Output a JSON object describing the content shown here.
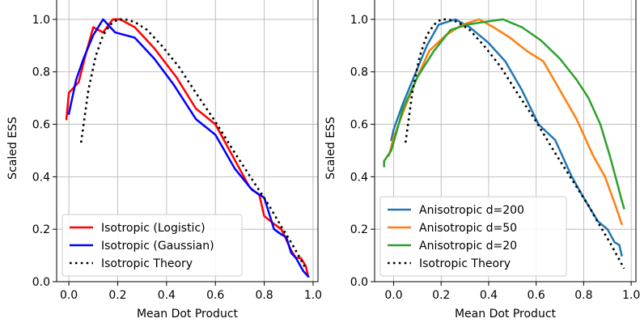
{
  "chart_data": [
    {
      "type": "line",
      "xlabel": "Mean Dot Product",
      "ylabel": "Scaled ESS",
      "xlim": [
        -0.05,
        1.02
      ],
      "ylim": [
        0.0,
        1.08
      ],
      "xticks": [
        "0.0",
        "0.2",
        "0.4",
        "0.6",
        "0.8",
        "1.0"
      ],
      "yticks": [
        "0.0",
        "0.2",
        "0.4",
        "0.6",
        "0.8",
        "1.0"
      ],
      "grid": true,
      "legend_position": "lower-left",
      "series": [
        {
          "name": "Isotropic (Logistic)",
          "color": "#ff0000",
          "style": "solid",
          "x": [
            -0.01,
            0.0,
            0.02,
            0.04,
            0.07,
            0.1,
            0.14,
            0.18,
            0.21,
            0.27,
            0.35,
            0.44,
            0.52,
            0.6,
            0.67,
            0.74,
            0.78,
            0.8,
            0.84,
            0.87,
            0.89,
            0.91,
            0.93,
            0.95,
            0.97,
            0.98
          ],
          "y": [
            0.62,
            0.72,
            0.74,
            0.76,
            0.87,
            0.97,
            0.95,
            1.0,
            1.0,
            0.97,
            0.89,
            0.78,
            0.66,
            0.6,
            0.48,
            0.36,
            0.33,
            0.25,
            0.22,
            0.2,
            0.16,
            0.12,
            0.09,
            0.09,
            0.06,
            0.02
          ]
        },
        {
          "name": "Isotropic (Gaussian)",
          "color": "#0000ff",
          "style": "solid",
          "x": [
            0.0,
            0.03,
            0.06,
            0.1,
            0.14,
            0.19,
            0.27,
            0.35,
            0.43,
            0.52,
            0.6,
            0.68,
            0.75,
            0.8,
            0.84,
            0.87,
            0.89,
            0.91,
            0.93,
            0.96,
            0.98
          ],
          "y": [
            0.64,
            0.77,
            0.85,
            0.94,
            1.0,
            0.95,
            0.93,
            0.85,
            0.75,
            0.62,
            0.56,
            0.43,
            0.35,
            0.32,
            0.2,
            0.18,
            0.17,
            0.11,
            0.09,
            0.04,
            0.02
          ]
        },
        {
          "name": "Isotropic Theory",
          "color": "#000000",
          "style": "dotted",
          "x": [
            0.05,
            0.08,
            0.11,
            0.14,
            0.17,
            0.2,
            0.23,
            0.27,
            0.32,
            0.38,
            0.45,
            0.52,
            0.6,
            0.68,
            0.75,
            0.82,
            0.87,
            0.91,
            0.94,
            0.97
          ],
          "y": [
            0.53,
            0.73,
            0.86,
            0.94,
            0.98,
            1.0,
            1.0,
            0.99,
            0.96,
            0.9,
            0.82,
            0.72,
            0.61,
            0.49,
            0.39,
            0.29,
            0.21,
            0.15,
            0.1,
            0.05
          ]
        }
      ]
    },
    {
      "type": "line",
      "xlabel": "Mean Dot Product",
      "ylabel": "Scaled ESS",
      "xlim": [
        -0.08,
        1.02
      ],
      "ylim": [
        0.0,
        1.08
      ],
      "xticks": [
        "0.0",
        "0.2",
        "0.4",
        "0.6",
        "0.8",
        "1.0"
      ],
      "yticks": [
        "0.0",
        "0.2",
        "0.4",
        "0.6",
        "0.8",
        "1.0"
      ],
      "grid": true,
      "legend_position": "lower-left",
      "series": [
        {
          "name": "Anisotropic d=200",
          "color": "#1f77b4",
          "style": "solid",
          "x": [
            -0.01,
            0.0,
            0.04,
            0.09,
            0.14,
            0.19,
            0.26,
            0.32,
            0.4,
            0.47,
            0.54,
            0.61,
            0.68,
            0.75,
            0.8,
            0.86,
            0.9,
            0.93,
            0.95,
            0.96
          ],
          "y": [
            0.54,
            0.58,
            0.68,
            0.79,
            0.9,
            0.98,
            1.0,
            0.97,
            0.91,
            0.84,
            0.73,
            0.6,
            0.54,
            0.4,
            0.32,
            0.23,
            0.2,
            0.15,
            0.14,
            0.1
          ]
        },
        {
          "name": "Anisotropic d=50",
          "color": "#ff7f0e",
          "style": "solid",
          "x": [
            -0.02,
            0.0,
            0.05,
            0.1,
            0.15,
            0.22,
            0.29,
            0.36,
            0.42,
            0.49,
            0.56,
            0.63,
            0.7,
            0.77,
            0.84,
            0.89,
            0.93,
            0.96
          ],
          "y": [
            0.48,
            0.55,
            0.67,
            0.78,
            0.88,
            0.94,
            0.98,
            1.0,
            0.97,
            0.93,
            0.88,
            0.84,
            0.73,
            0.62,
            0.48,
            0.4,
            0.3,
            0.22
          ]
        },
        {
          "name": "Anisotropic d=20",
          "color": "#2ca02c",
          "style": "solid",
          "x": [
            -0.04,
            -0.04,
            -0.01,
            0.04,
            0.1,
            0.17,
            0.24,
            0.31,
            0.38,
            0.46,
            0.54,
            0.62,
            0.7,
            0.77,
            0.82,
            0.87,
            0.91,
            0.94,
            0.96,
            0.97
          ],
          "y": [
            0.44,
            0.46,
            0.5,
            0.66,
            0.78,
            0.88,
            0.96,
            0.98,
            0.99,
            1.0,
            0.97,
            0.92,
            0.85,
            0.77,
            0.7,
            0.6,
            0.48,
            0.38,
            0.31,
            0.28
          ]
        },
        {
          "name": "Isotropic Theory",
          "color": "#000000",
          "style": "dotted",
          "x": [
            0.05,
            0.08,
            0.11,
            0.14,
            0.17,
            0.2,
            0.23,
            0.27,
            0.32,
            0.38,
            0.45,
            0.52,
            0.6,
            0.68,
            0.75,
            0.82,
            0.87,
            0.91,
            0.94,
            0.97
          ],
          "y": [
            0.53,
            0.73,
            0.86,
            0.94,
            0.98,
            1.0,
            1.0,
            0.99,
            0.96,
            0.9,
            0.82,
            0.72,
            0.61,
            0.49,
            0.39,
            0.29,
            0.21,
            0.15,
            0.1,
            0.05
          ]
        }
      ]
    }
  ]
}
